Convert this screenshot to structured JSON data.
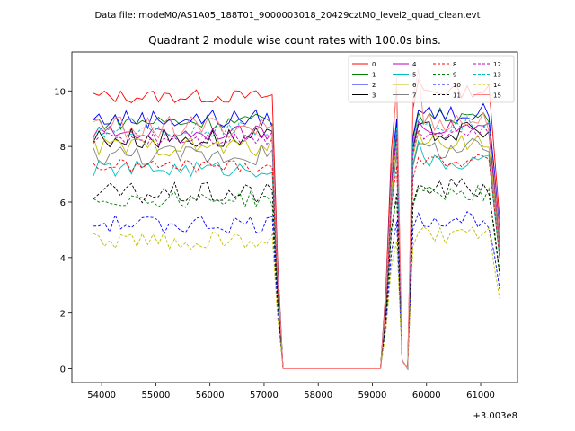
{
  "figure": {
    "suptitle": "Data file: modeM0/AS1A05_188T01_9000003018_20429cztM0_level2_quad_clean.evt"
  },
  "chart_data": {
    "type": "line",
    "title": "Quadrant 2 module wise count rates with 100.0s bins.",
    "xlabel": "",
    "ylabel": "",
    "x_offset_label": "+3.003e8",
    "xlim": [
      53450,
      61680
    ],
    "ylim": [
      -0.5,
      11.4
    ],
    "x_ticks": [
      54000,
      55000,
      56000,
      57000,
      58000,
      59000,
      60000,
      61000
    ],
    "x_tick_labels": [
      "54000",
      "55000",
      "56000",
      "57000",
      "58000",
      "59000",
      "60000",
      "61000"
    ],
    "y_ticks": [
      0,
      2,
      4,
      6,
      8,
      10
    ],
    "y_tick_labels": [
      "0",
      "2",
      "4",
      "6",
      "8",
      "10"
    ],
    "grid": false,
    "legend": {
      "location": "upper right",
      "columns": 4
    },
    "segments": [
      {
        "x_start": 53850,
        "x_end": 57150,
        "step": 100
      },
      {
        "x_start": 57250,
        "x_end": 57350,
        "step": 100
      },
      {
        "x_start": 59250,
        "x_end": 59650,
        "step": 100
      },
      {
        "x_start": 59750,
        "x_end": 61350,
        "step": 100
      }
    ],
    "series": [
      {
        "name": "0",
        "color": "#ff0000",
        "dash": "solid",
        "level": 9.8,
        "top": 10.4
      },
      {
        "name": "1",
        "color": "#008000",
        "dash": "solid",
        "level": 8.9,
        "top": 9.2
      },
      {
        "name": "2",
        "color": "#0000ff",
        "dash": "solid",
        "level": 9.0,
        "top": 9.3
      },
      {
        "name": "3",
        "color": "#000000",
        "dash": "solid",
        "level": 8.3,
        "top": 8.8
      },
      {
        "name": "4",
        "color": "#bf00bf",
        "dash": "solid",
        "level": 8.5,
        "top": 8.9
      },
      {
        "name": "5",
        "color": "#00bfbf",
        "dash": "solid",
        "level": 7.2,
        "top": 8.2
      },
      {
        "name": "6",
        "color": "#bfbf00",
        "dash": "solid",
        "level": 8.0,
        "top": 8.5
      },
      {
        "name": "7",
        "color": "#808080",
        "dash": "solid",
        "level": 7.7,
        "top": 8.1
      },
      {
        "name": "8",
        "color": "#ff0000",
        "dash": "dashed",
        "level": 7.3,
        "top": 7.6
      },
      {
        "name": "9",
        "color": "#008000",
        "dash": "dashed",
        "level": 6.1,
        "top": 6.5
      },
      {
        "name": "10",
        "color": "#0000ff",
        "dash": "dashed",
        "level": 5.2,
        "top": 5.6
      },
      {
        "name": "11",
        "color": "#000000",
        "dash": "dashed",
        "level": 6.3,
        "top": 6.6
      },
      {
        "name": "12",
        "color": "#bf00bf",
        "dash": "dashed",
        "level": 8.3,
        "top": 8.6
      },
      {
        "name": "13",
        "color": "#00bfbf",
        "dash": "dashed",
        "level": 8.6,
        "top": 9.0
      },
      {
        "name": "14",
        "color": "#bfbf00",
        "dash": "dashed",
        "level": 4.6,
        "top": 4.9
      },
      {
        "name": "15",
        "color": "#ff7f7f",
        "dash": "solid",
        "level": 8.7,
        "top": 10.8
      }
    ]
  }
}
